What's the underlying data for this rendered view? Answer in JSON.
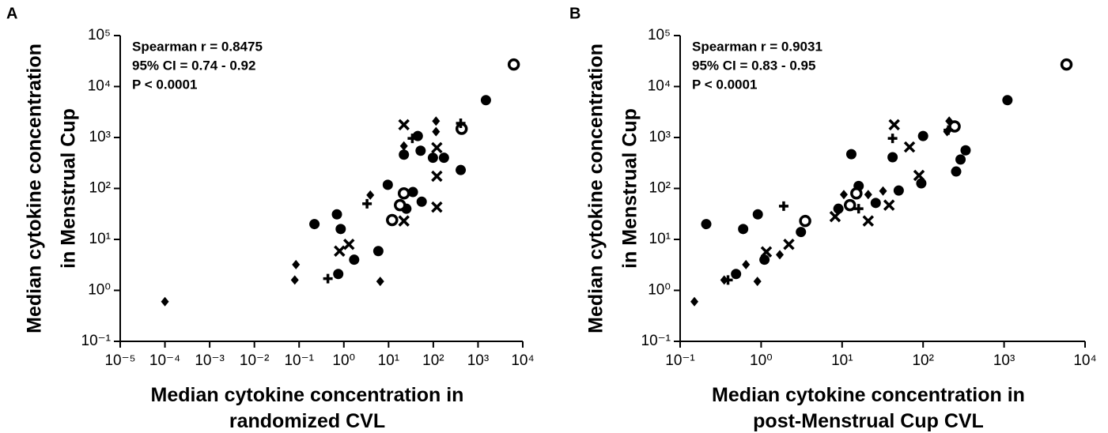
{
  "chart_data": [
    {
      "type": "scatter",
      "panel_label": "A",
      "xlabel": [
        "Median cytokine concentration in",
        "randomized CVL"
      ],
      "ylabel": [
        "Median cytokine concentration",
        "in Menstrual Cup"
      ],
      "annotations": [
        "Spearman r = 0.8475",
        "95% CI = 0.74 - 0.92",
        "P  < 0.0001"
      ],
      "log_x": true,
      "log_y": true,
      "color": "#000000",
      "xlim": [
        1e-05,
        10000
      ],
      "ylim": [
        0.1,
        100000
      ],
      "xticks": [
        {
          "value": 1e-05,
          "label": "10⁻⁵"
        },
        {
          "value": 0.0001,
          "label": "10⁻⁴"
        },
        {
          "value": 0.001,
          "label": "10⁻³"
        },
        {
          "value": 0.01,
          "label": "10⁻²"
        },
        {
          "value": 0.1,
          "label": "10⁻¹"
        },
        {
          "value": 1,
          "label": "10⁰"
        },
        {
          "value": 10,
          "label": "10¹"
        },
        {
          "value": 100,
          "label": "10²"
        },
        {
          "value": 1000,
          "label": "10³"
        },
        {
          "value": 10000,
          "label": "10⁴"
        }
      ],
      "yticks": [
        {
          "value": 0.1,
          "label": "10⁻¹"
        },
        {
          "value": 1,
          "label": "10⁰"
        },
        {
          "value": 10,
          "label": "10¹"
        },
        {
          "value": 100,
          "label": "10²"
        },
        {
          "value": 1000,
          "label": "10³"
        },
        {
          "value": 10000,
          "label": "10⁴"
        },
        {
          "value": 100000,
          "label": "10⁵"
        }
      ],
      "series": [
        {
          "marker": "circle",
          "x": [
            0.22,
            0.7,
            0.85,
            0.75,
            1.7,
            5.9,
            9.6,
            25,
            22,
            45,
            52,
            55,
            98,
            173,
            410,
            1500,
            35
          ],
          "y": [
            20,
            31,
            16,
            2.1,
            4,
            5.9,
            118,
            40,
            460,
            1070,
            550,
            55,
            400,
            400,
            230,
            5400,
            85
          ]
        },
        {
          "marker": "open-circle",
          "x": [
            6300,
            430,
            22,
            18,
            12
          ],
          "y": [
            27000,
            1480,
            80,
            47,
            24
          ]
        },
        {
          "marker": "diamond",
          "x": [
            0.0001,
            0.08,
            0.085,
            3.9,
            115,
            115,
            22,
            6.5
          ],
          "y": [
            0.6,
            1.6,
            3.2,
            74,
            2100,
            1300,
            680,
            1.5
          ]
        },
        {
          "marker": "plus",
          "x": [
            0.44,
            3.3,
            34,
            410
          ],
          "y": [
            1.7,
            50,
            960,
            1900
          ]
        },
        {
          "marker": "cross",
          "x": [
            22,
            120,
            120,
            120,
            22,
            1.3,
            0.8
          ],
          "y": [
            1780,
            630,
            174,
            43,
            23,
            8,
            5.9
          ]
        }
      ]
    },
    {
      "type": "scatter",
      "panel_label": "B",
      "xlabel": [
        "Median cytokine concentration in",
        "post-Menstrual Cup CVL"
      ],
      "ylabel": [
        "Median cytokine concentration",
        "in Menstrual Cup"
      ],
      "annotations": [
        "Spearman r = 0.9031",
        "95% CI = 0.83 - 0.95",
        "P  < 0.0001"
      ],
      "log_x": true,
      "log_y": true,
      "color": "#000000",
      "xlim": [
        0.1,
        10000
      ],
      "ylim": [
        0.1,
        100000
      ],
      "xticks": [
        {
          "value": 0.1,
          "label": "10⁻¹"
        },
        {
          "value": 1,
          "label": "10⁰"
        },
        {
          "value": 10,
          "label": "10¹"
        },
        {
          "value": 100,
          "label": "10²"
        },
        {
          "value": 1000,
          "label": "10³"
        },
        {
          "value": 10000,
          "label": "10⁴"
        }
      ],
      "yticks": [
        {
          "value": 0.1,
          "label": "10⁻¹"
        },
        {
          "value": 1,
          "label": "10⁰"
        },
        {
          "value": 10,
          "label": "10¹"
        },
        {
          "value": 100,
          "label": "10²"
        },
        {
          "value": 1000,
          "label": "10³"
        },
        {
          "value": 10000,
          "label": "10⁴"
        },
        {
          "value": 100000,
          "label": "10⁵"
        }
      ],
      "series": [
        {
          "marker": "circle",
          "x": [
            0.21,
            0.91,
            0.6,
            0.49,
            1.1,
            3.1,
            9,
            13,
            16,
            42,
            26,
            50,
            100,
            95,
            335,
            290,
            256,
            1100
          ],
          "y": [
            20,
            31,
            16,
            2.1,
            4,
            14,
            40,
            470,
            112,
            410,
            52,
            91,
            1070,
            126,
            560,
            370,
            215,
            5400
          ]
        },
        {
          "marker": "open-circle",
          "x": [
            5900,
            245,
            15,
            12.5,
            3.5
          ],
          "y": [
            27000,
            1650,
            80,
            47,
            23
          ]
        },
        {
          "marker": "diamond",
          "x": [
            0.15,
            0.35,
            0.65,
            0.9,
            1.7,
            10.5,
            21,
            32,
            210,
            198
          ],
          "y": [
            0.6,
            1.6,
            3.2,
            1.5,
            5,
            76,
            76,
            89,
            2100,
            1300
          ]
        },
        {
          "marker": "plus",
          "x": [
            0.39,
            1.9,
            16,
            42,
            205
          ],
          "y": [
            1.6,
            45,
            40,
            960,
            1400
          ]
        },
        {
          "marker": "cross",
          "x": [
            44,
            68,
            89,
            38,
            21,
            8.2,
            1.16,
            2.2
          ],
          "y": [
            1780,
            650,
            180,
            47,
            23,
            28,
            5.7,
            8
          ]
        }
      ]
    }
  ]
}
